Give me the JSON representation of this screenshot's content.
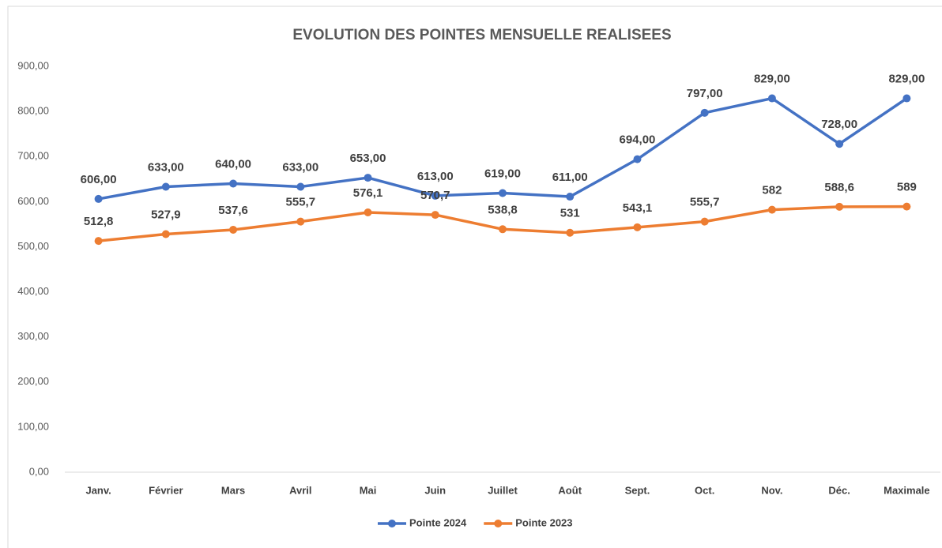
{
  "chart_data": {
    "type": "line",
    "title": "EVOLUTION DES POINTES MENSUELLE REALISEES",
    "categories": [
      "Janv.",
      "Février",
      "Mars",
      "Avril",
      "Mai",
      "Juin",
      "Juillet",
      "Août",
      "Sept.",
      "Oct.",
      "Nov.",
      "Déc.",
      "Maximale"
    ],
    "series": [
      {
        "name": "Pointe 2024",
        "color": "#4472c4",
        "values": [
          606,
          633,
          640,
          633,
          653,
          613,
          619,
          611,
          694,
          797,
          829,
          728,
          829
        ],
        "value_labels": [
          "606,00",
          "633,00",
          "640,00",
          "633,00",
          "653,00",
          "613,00",
          "619,00",
          "611,00",
          "694,00",
          "797,00",
          "829,00",
          "728,00",
          "829,00"
        ]
      },
      {
        "name": "Pointe 2023",
        "color": "#ed7d31",
        "values": [
          512.8,
          527.9,
          537.6,
          555.7,
          576.1,
          570.7,
          538.8,
          531,
          543.1,
          555.7,
          582,
          588.6,
          589
        ],
        "value_labels": [
          "512,8",
          "527,9",
          "537,6",
          "555,7",
          "576,1",
          "570,7",
          "538,8",
          "531",
          "543,1",
          "555,7",
          "582",
          "588,6",
          "589"
        ]
      }
    ],
    "ylim": [
      0,
      900
    ],
    "yticks": [
      {
        "value": 0,
        "label": "0,00"
      },
      {
        "value": 100,
        "label": "100,00"
      },
      {
        "value": 200,
        "label": "200,00"
      },
      {
        "value": 300,
        "label": "300,00"
      },
      {
        "value": 400,
        "label": "400,00"
      },
      {
        "value": 500,
        "label": "500,00"
      },
      {
        "value": 600,
        "label": "600,00"
      },
      {
        "value": 700,
        "label": "700,00"
      },
      {
        "value": 800,
        "label": "800,00"
      },
      {
        "value": 900,
        "label": "900,00"
      }
    ],
    "grid": false,
    "legend": "bottom"
  }
}
